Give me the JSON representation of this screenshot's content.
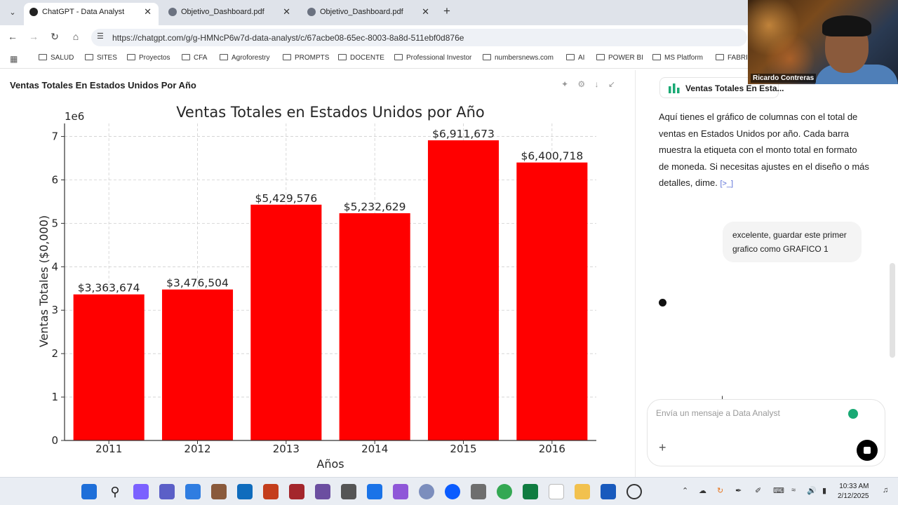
{
  "browser": {
    "tabs": [
      {
        "label": "ChatGPT - Data Analyst",
        "icon": "chatgpt-icon"
      },
      {
        "label": "Objetivo_Dashboard.pdf",
        "icon": "globe-icon"
      },
      {
        "label": "Objetivo_Dashboard.pdf",
        "icon": "globe-icon"
      }
    ],
    "url": "https://chatgpt.com/g/g-HMNcP6w7d-data-analyst/c/67acbe08-65ec-8003-8a8d-511ebf0d876e",
    "bookmarks": [
      "SALUD",
      "SITES",
      "Proyectos",
      "CFA",
      "Agroforestry",
      "PROMPTS",
      "DOCENTE",
      "Professional Investor",
      "numbersnews.com",
      "AI",
      "POWER BI",
      "MS Platform",
      "FABRIC"
    ]
  },
  "document": {
    "title": "Ventas Totales En Estados Unidos Por Año"
  },
  "chart_data": {
    "type": "bar",
    "title": "Ventas Totales en Estados Unidos por Año",
    "xlabel": "Años",
    "ylabel": "Ventas Totales ($0,000)",
    "offset_label": "1e6",
    "categories": [
      "2011",
      "2012",
      "2013",
      "2014",
      "2015",
      "2016"
    ],
    "values": [
      3363674,
      3476504,
      5429576,
      5232629,
      6911673,
      6400718
    ],
    "value_labels": [
      "$3,363,674",
      "$3,476,504",
      "$5,429,576",
      "$5,232,629",
      "$6,911,673",
      "$6,400,718"
    ],
    "ylim": [
      0,
      7300000
    ],
    "yticks": [
      0,
      1,
      2,
      3,
      4,
      5,
      6,
      7
    ],
    "bar_color": "#ff0000",
    "grid": true,
    "grid_style": "dashed"
  },
  "chat": {
    "chip_label": "Ventas Totales En Esta...",
    "assistant_reply": "Aquí tienes el gráfico de columnas con el total de ventas en Estados Unidos por año. Cada barra muestra la etiqueta con el monto total en formato de moneda. Si necesitas ajustes en el diseño o más detalles, dime.",
    "source_marker": "[>_]",
    "user_message": "excelente, guardar este primer grafico como GRAFICO 1",
    "composer_placeholder": "Envía un mensaje a Data Analyst"
  },
  "webcam": {
    "name": "Ricardo Contreras"
  },
  "taskbar": {
    "time": "10:33 AM",
    "date": "2/12/2025"
  }
}
